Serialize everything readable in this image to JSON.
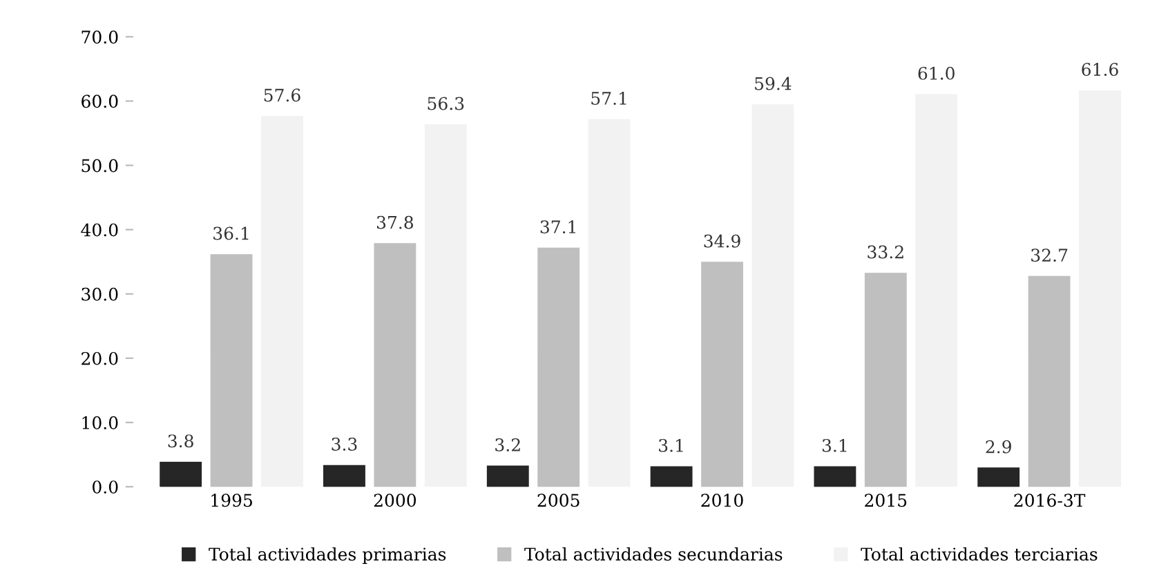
{
  "chart_data": {
    "type": "bar",
    "categories": [
      "1995",
      "2000",
      "2005",
      "2010",
      "2015",
      "2016-3T"
    ],
    "series": [
      {
        "name": "Total actividades primarias",
        "color": "#262626",
        "values": [
          3.8,
          3.3,
          3.2,
          3.1,
          3.1,
          2.9
        ]
      },
      {
        "name": "Total actividades secundarias",
        "color": "#bfbfbf",
        "values": [
          36.1,
          37.8,
          37.1,
          34.9,
          33.2,
          32.7
        ]
      },
      {
        "name": "Total actividades terciarias",
        "color": "#f2f2f2",
        "values": [
          57.6,
          56.3,
          57.1,
          59.4,
          61.0,
          61.6
        ],
        "value_labels": [
          "57.6",
          "56.3",
          "57.1",
          "59.4",
          "61.0",
          "61.6"
        ]
      }
    ],
    "ylim": [
      0,
      70
    ],
    "yticks": [
      {
        "value": 0,
        "label": "0.0"
      },
      {
        "value": 10,
        "label": "10.0"
      },
      {
        "value": 20,
        "label": "20.0"
      },
      {
        "value": 30,
        "label": "30.0"
      },
      {
        "value": 40,
        "label": "40.0"
      },
      {
        "value": 50,
        "label": "50.0"
      },
      {
        "value": 60,
        "label": "60.0"
      },
      {
        "value": 70,
        "label": "70.0"
      }
    ],
    "data_labels": true,
    "grid": false,
    "legend": "bottom"
  }
}
